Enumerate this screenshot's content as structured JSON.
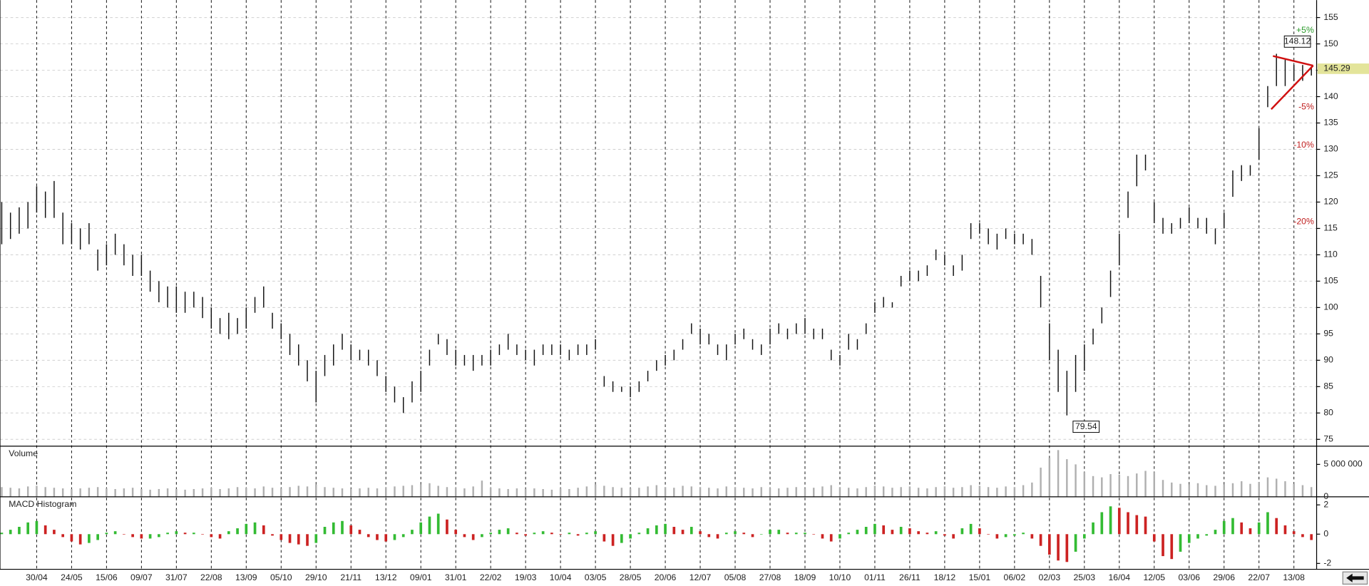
{
  "chart_data": [
    {
      "type": "range-bar",
      "color": "#111111",
      "high": [
        120,
        118,
        119,
        120,
        123,
        122,
        124,
        118,
        116,
        115,
        116,
        111,
        112,
        114,
        112,
        110,
        110,
        107,
        105,
        104,
        104,
        103,
        103,
        102,
        100,
        98,
        99,
        98,
        100,
        102,
        104,
        99,
        97,
        95,
        93,
        90,
        88,
        91,
        93,
        95,
        93,
        92,
        92,
        90,
        87,
        85,
        83,
        86,
        88,
        92,
        95,
        94,
        92,
        91,
        91,
        91,
        92,
        93,
        95,
        93,
        92,
        92,
        93,
        93,
        93,
        92,
        93,
        93,
        94,
        87,
        86,
        85,
        85,
        86,
        88,
        90,
        91,
        92,
        94,
        97,
        96,
        95,
        93,
        93,
        95,
        96,
        94,
        93,
        96,
        97,
        96,
        97,
        98,
        96,
        96,
        92,
        91,
        95,
        94,
        97,
        101,
        102,
        101,
        106,
        107,
        107,
        108,
        111,
        110,
        108,
        110,
        116,
        116,
        115,
        114,
        115,
        114,
        114,
        113,
        106,
        97,
        92,
        88,
        91,
        93,
        96,
        100,
        107,
        114,
        122,
        129,
        129,
        120,
        117,
        116,
        117,
        119,
        117,
        117,
        115,
        118,
        126,
        127,
        127,
        134,
        142,
        148.12,
        147,
        146,
        146,
        145.6
      ],
      "low": [
        112,
        113,
        114,
        115,
        118,
        117,
        117,
        112,
        112,
        111,
        112,
        107,
        108,
        110,
        108,
        106,
        106,
        103,
        101,
        100,
        99,
        99,
        100,
        98,
        96,
        95,
        94,
        95,
        96,
        99,
        100,
        96,
        94,
        91,
        89,
        86,
        82,
        87,
        89,
        92,
        90,
        90,
        89,
        87,
        84,
        82,
        80,
        82,
        84,
        89,
        93,
        91,
        89,
        89,
        88,
        89,
        89,
        91,
        92,
        91,
        90,
        89,
        91,
        91,
        91,
        90,
        91,
        91,
        92,
        85,
        84,
        84,
        83,
        84,
        86,
        88,
        89,
        90,
        92,
        95,
        93,
        93,
        91,
        90,
        93,
        94,
        92,
        91,
        93,
        95,
        94,
        95,
        95,
        94,
        94,
        90,
        89,
        92,
        92,
        95,
        99,
        100,
        100,
        104,
        105,
        105,
        106,
        109,
        108,
        106,
        107,
        113,
        114,
        112,
        111,
        113,
        112,
        112,
        110,
        100,
        90,
        84,
        79.54,
        84,
        88,
        93,
        97,
        102,
        108,
        117,
        123,
        126,
        116,
        114,
        114,
        115,
        116,
        115,
        114,
        112,
        115,
        121,
        124,
        125,
        128,
        138,
        142,
        142,
        143,
        143,
        144
      ],
      "last": 145.29,
      "percent_levels": [
        {
          "value": 5,
          "label": "+5%"
        },
        {
          "value": -5,
          "label": "-5%"
        },
        {
          "value": -10,
          "label": "-10%"
        },
        {
          "value": -20,
          "label": "-20%"
        }
      ],
      "xlim": [
        -0.2,
        150.6
      ],
      "ylim": [
        73.7,
        158.3
      ],
      "yticks": [
        75,
        80,
        85,
        90,
        95,
        100,
        105,
        110,
        115,
        120,
        125,
        130,
        135,
        140,
        145,
        150,
        155
      ],
      "xticks": [
        {
          "value": 4,
          "label": "30/04"
        },
        {
          "value": 8,
          "label": "24/05"
        },
        {
          "value": 12,
          "label": "15/06"
        },
        {
          "value": 16,
          "label": "09/07"
        },
        {
          "value": 20,
          "label": "31/07"
        },
        {
          "value": 24,
          "label": "22/08"
        },
        {
          "value": 28,
          "label": "13/09"
        },
        {
          "value": 32,
          "label": "05/10"
        },
        {
          "value": 36,
          "label": "29/10"
        },
        {
          "value": 40,
          "label": "21/11"
        },
        {
          "value": 44,
          "label": "13/12"
        },
        {
          "value": 48,
          "label": "09/01"
        },
        {
          "value": 52,
          "label": "31/01"
        },
        {
          "value": 56,
          "label": "22/02"
        },
        {
          "value": 60,
          "label": "19/03"
        },
        {
          "value": 64,
          "label": "10/04"
        },
        {
          "value": 68,
          "label": "03/05"
        },
        {
          "value": 72,
          "label": "28/05"
        },
        {
          "value": 76,
          "label": "20/06"
        },
        {
          "value": 80,
          "label": "12/07"
        },
        {
          "value": 84,
          "label": "05/08"
        },
        {
          "value": 88,
          "label": "27/08"
        },
        {
          "value": 92,
          "label": "18/09"
        },
        {
          "value": 96,
          "label": "10/10"
        },
        {
          "value": 100,
          "label": "01/11"
        },
        {
          "value": 104,
          "label": "26/11"
        },
        {
          "value": 108,
          "label": "18/12"
        },
        {
          "value": 112,
          "label": "15/01"
        },
        {
          "value": 116,
          "label": "06/02"
        },
        {
          "value": 120,
          "label": "02/03"
        },
        {
          "value": 124,
          "label": "25/03"
        },
        {
          "value": 128,
          "label": "16/04"
        },
        {
          "value": 132,
          "label": "12/05"
        },
        {
          "value": 136,
          "label": "03/06"
        },
        {
          "value": 140,
          "label": "29/06"
        },
        {
          "value": 144,
          "label": "22/07"
        },
        {
          "value": 148,
          "label": "13/08"
        }
      ],
      "grid": true
    },
    {
      "type": "bar",
      "title": "Volume",
      "color": "#b0b0b0",
      "values": [
        1500000,
        1400000,
        1300000,
        1600000,
        1700000,
        1500000,
        1400000,
        1300000,
        1200000,
        1300000,
        1400000,
        1500000,
        1300000,
        1200000,
        1300000,
        1400000,
        1200000,
        1100000,
        1200000,
        1300000,
        1200000,
        1100000,
        1200000,
        1300000,
        1400000,
        1200000,
        1300000,
        1500000,
        1400000,
        1300000,
        1600000,
        1400000,
        1300000,
        1500000,
        1700000,
        1600000,
        1900000,
        1500000,
        1400000,
        1300000,
        1200000,
        1300000,
        1400000,
        1300000,
        1500000,
        1600000,
        1700000,
        1800000,
        1900000,
        2100000,
        1700000,
        1500000,
        1400000,
        1300000,
        1600000,
        2500000,
        1400000,
        1300000,
        1200000,
        1300000,
        1200000,
        1300000,
        1200000,
        1100000,
        1300000,
        1200000,
        1400000,
        1600000,
        1900000,
        1700000,
        1500000,
        1400000,
        1300000,
        1400000,
        1600000,
        1800000,
        1500000,
        1400000,
        1700000,
        1600000,
        1500000,
        1400000,
        1300000,
        1600000,
        1500000,
        1400000,
        1300000,
        1500000,
        1400000,
        1300000,
        1400000,
        1500000,
        1300000,
        1400000,
        1600000,
        1800000,
        1500000,
        1400000,
        1300000,
        1500000,
        1700000,
        1600000,
        1400000,
        1500000,
        1600000,
        1400000,
        1300000,
        1500000,
        1600000,
        1400000,
        1500000,
        1800000,
        1700000,
        1500000,
        1400000,
        1600000,
        1500000,
        1800000,
        2200000,
        4500000,
        6000000,
        7200000,
        5800000,
        5000000,
        3800000,
        3200000,
        3000000,
        3500000,
        3400000,
        3200000,
        3600000,
        4000000,
        3800000,
        2600000,
        2200000,
        2000000,
        1900000,
        2100000,
        1800000,
        1700000,
        1900000,
        2100000,
        2400000,
        2000000,
        2300000,
        3000000,
        2800000,
        2400000,
        2000000,
        1800000,
        1500000
      ],
      "xlim": [
        -0.2,
        150.6
      ],
      "ylim": [
        0,
        7800000
      ],
      "yticks": [
        0,
        {
          "value": 5000000,
          "label": "5 000 000"
        }
      ]
    },
    {
      "type": "histogram-bar",
      "title": "MACD Histogram",
      "up_color": "#33bb33",
      "down_color": "#cc2222",
      "values": [
        0.1,
        0.3,
        0.5,
        0.8,
        0.9,
        0.6,
        0.3,
        -0.2,
        -0.5,
        -0.7,
        -0.6,
        -0.4,
        0.1,
        0.2,
        0,
        -0.2,
        -0.3,
        -0.3,
        -0.2,
        0.1,
        0.2,
        0.1,
        0.1,
        0,
        -0.2,
        -0.3,
        0.2,
        0.4,
        0.7,
        0.8,
        0.6,
        -0.1,
        -0.4,
        -0.6,
        -0.7,
        -0.8,
        -0.6,
        0.5,
        0.8,
        0.9,
        0.6,
        0.3,
        -0.2,
        -0.4,
        -0.5,
        -0.4,
        -0.2,
        0.3,
        0.8,
        1.2,
        1.4,
        1,
        0.3,
        -0.2,
        -0.4,
        -0.2,
        0.1,
        0.3,
        0.4,
        0.1,
        -0.1,
        0.1,
        0.2,
        0.1,
        0,
        0.1,
        -0.1,
        0.1,
        0.2,
        -0.5,
        -0.8,
        -0.6,
        -0.3,
        0.1,
        0.4,
        0.6,
        0.7,
        0.5,
        0.3,
        0.5,
        0.2,
        -0.2,
        -0.3,
        0.1,
        0.2,
        0.1,
        -0.2,
        0,
        0.3,
        0.3,
        0.1,
        0.1,
        0.1,
        0,
        -0.3,
        -0.5,
        -0.3,
        0.1,
        0.3,
        0.5,
        0.7,
        0.6,
        0.3,
        0.5,
        0.4,
        0.2,
        0.1,
        0.2,
        -0.1,
        -0.3,
        0.4,
        0.7,
        0.4,
        0,
        -0.3,
        -0.2,
        -0.1,
        0.1,
        -0.3,
        -0.8,
        -1.4,
        -1.8,
        -1.9,
        -1.2,
        -0.3,
        0.8,
        1.5,
        1.9,
        1.8,
        1.5,
        1.3,
        1.2,
        -0.5,
        -1.5,
        -1.7,
        -1.2,
        -0.6,
        -0.3,
        -0.1,
        0.3,
        0.9,
        1.1,
        0.8,
        0.4,
        0.8,
        1.5,
        1.1,
        0.6,
        0.2,
        -0.2,
        -0.4
      ],
      "xlim": [
        -0.2,
        150.6
      ],
      "ylim": [
        -2.4,
        2.55
      ],
      "yticks": [
        -2,
        0,
        2
      ]
    }
  ]
}
